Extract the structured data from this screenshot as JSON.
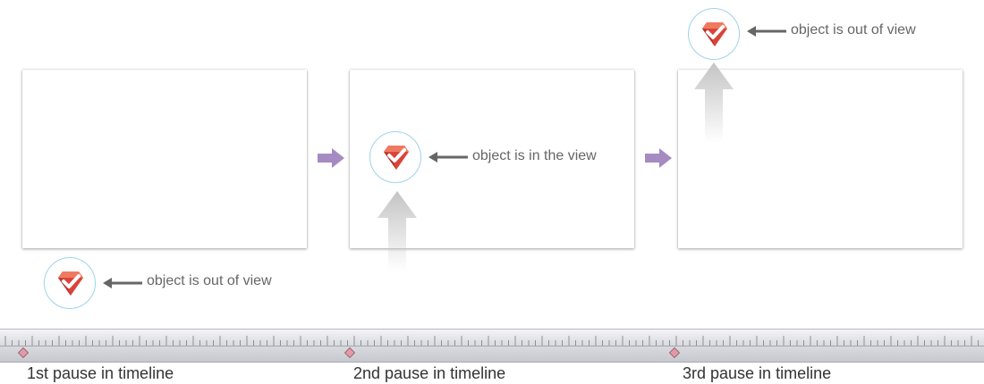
{
  "labels": {
    "out_of_view_top": "object is out of view",
    "in_view": "object is in the view",
    "out_of_view_bottom": "object is out of view"
  },
  "timeline": {
    "pauses": [
      "1st pause in timeline",
      "2nd pause in timeline",
      "3rd pause in timeline"
    ]
  },
  "colors": {
    "next_arrow": "#a58bc2",
    "pointer_arrow": "#666666",
    "icon_ring": "#9fd3ea",
    "gem_red": "#d9443a",
    "pause_marker": "#e29aa6"
  },
  "icons": {
    "object": "gem-check-icon",
    "pointer": "arrow-left-icon",
    "step": "arrow-right-icon",
    "motion": "arrow-up-icon",
    "pause": "diamond-marker-icon"
  }
}
